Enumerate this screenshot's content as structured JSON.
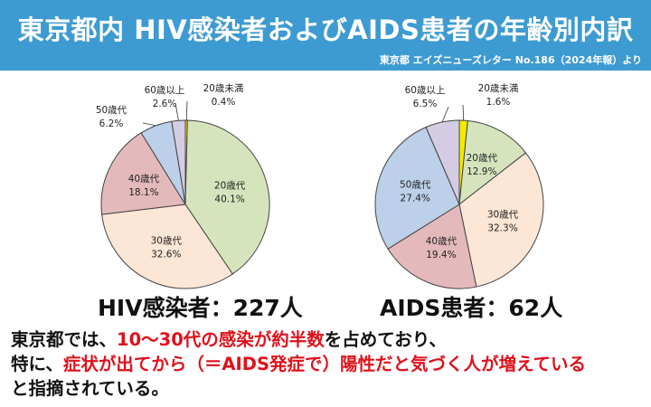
{
  "header": {
    "title": "東京都内 HIV感染者およびAIDS患者の年齢別内訳",
    "source": "東京都 エイズニューズレター No.186（2024年報）より"
  },
  "chart_data": [
    {
      "type": "pie",
      "title": "HIV感染者：227人",
      "slices": [
        {
          "label": "20歳未満",
          "value": 0.4,
          "color": "#f5ea00"
        },
        {
          "label": "20歳代",
          "value": 40.1,
          "color": "#d6e4bd"
        },
        {
          "label": "30歳代",
          "value": 32.6,
          "color": "#fce6d6"
        },
        {
          "label": "40歳代",
          "value": 18.1,
          "color": "#e4b9bc"
        },
        {
          "label": "50歳代",
          "value": 6.2,
          "color": "#bcd0e9"
        },
        {
          "label": "60歳以上",
          "value": 2.6,
          "color": "#d4cce3"
        }
      ],
      "value_labels": [
        "0.4%",
        "40.1%",
        "32.6%",
        "18.1%",
        "6.2%",
        "2.6%"
      ]
    },
    {
      "type": "pie",
      "title": "AIDS患者：62人",
      "slices": [
        {
          "label": "20歳未満",
          "value": 1.6,
          "color": "#f5ea00"
        },
        {
          "label": "20歳代",
          "value": 12.9,
          "color": "#d6e4bd"
        },
        {
          "label": "30歳代",
          "value": 32.3,
          "color": "#fce6d6"
        },
        {
          "label": "40歳代",
          "value": 19.4,
          "color": "#e4b9bc"
        },
        {
          "label": "50歳代",
          "value": 27.4,
          "color": "#bcd0e9"
        },
        {
          "label": "60歳以上",
          "value": 6.5,
          "color": "#d4cce3"
        }
      ],
      "value_labels": [
        "1.6%",
        "12.9%",
        "32.3%",
        "19.4%",
        "27.4%",
        "6.5%"
      ]
    }
  ],
  "captions": {
    "hiv": "HIV感染者：227人",
    "aids": "AIDS患者：62人"
  },
  "summary": {
    "l1a": "東京都では、",
    "l1b": "10〜30代の感染が約半数",
    "l1c": "を占めており、",
    "l2a": "特に、",
    "l2b": "症状が出てから（＝AIDS発症で）陽性だと気づく人が増えている",
    "l3": "と指摘されている。"
  },
  "colors": {
    "header_bg": "#3d9bd2",
    "highlight": "#e0101a"
  }
}
